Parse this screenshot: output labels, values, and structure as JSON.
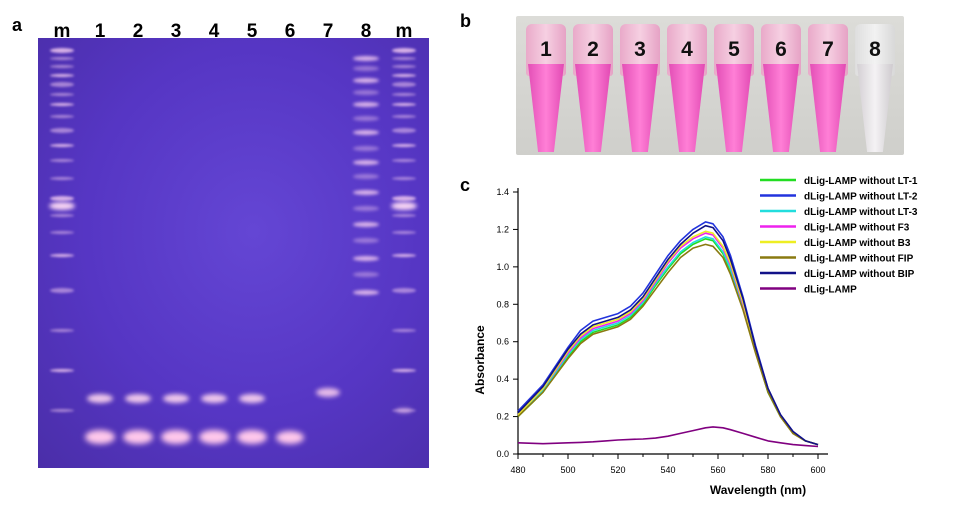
{
  "panel_labels": {
    "a": "a",
    "b": "b",
    "c": "c"
  },
  "gel": {
    "lane_labels": [
      "m",
      "1",
      "2",
      "3",
      "4",
      "5",
      "6",
      "7",
      "8",
      "m"
    ]
  },
  "tubes": {
    "labels": [
      "1",
      "2",
      "3",
      "4",
      "5",
      "6",
      "7",
      "8"
    ],
    "colors": [
      "pink",
      "pink",
      "pink",
      "pink",
      "pink",
      "pink",
      "pink",
      "colorless"
    ]
  },
  "chart_data": {
    "type": "line",
    "title": "",
    "xlabel": "Wavelength (nm)",
    "ylabel": "Absorbance",
    "xlim": [
      480,
      600
    ],
    "ylim": [
      0.0,
      1.4
    ],
    "x_ticks": [
      "480",
      "500",
      "520",
      "540",
      "560",
      "580",
      "600"
    ],
    "y_ticks": [
      "0.0",
      "0.2",
      "0.4",
      "0.6",
      "0.8",
      "1.0",
      "1.2",
      "1.4"
    ],
    "legend_position": "top-right",
    "x": [
      480,
      490,
      500,
      505,
      510,
      515,
      520,
      525,
      530,
      535,
      540,
      545,
      550,
      555,
      558,
      562,
      565,
      570,
      575,
      580,
      585,
      590,
      595,
      600
    ],
    "series": [
      {
        "name": "dLig-LAMP without LT-1",
        "color": "#22dd22",
        "values": [
          0.2,
          0.33,
          0.52,
          0.6,
          0.65,
          0.67,
          0.69,
          0.73,
          0.8,
          0.9,
          0.99,
          1.07,
          1.12,
          1.15,
          1.14,
          1.07,
          0.98,
          0.78,
          0.55,
          0.33,
          0.2,
          0.11,
          0.07,
          0.05
        ]
      },
      {
        "name": "dLig-LAMP without LT-2",
        "color": "#2233dd",
        "values": [
          0.23,
          0.37,
          0.57,
          0.66,
          0.71,
          0.73,
          0.75,
          0.79,
          0.86,
          0.96,
          1.06,
          1.14,
          1.2,
          1.24,
          1.23,
          1.16,
          1.06,
          0.84,
          0.58,
          0.35,
          0.21,
          0.12,
          0.07,
          0.05
        ]
      },
      {
        "name": "dLig-LAMP without LT-3",
        "color": "#22dddd",
        "values": [
          0.21,
          0.34,
          0.53,
          0.61,
          0.66,
          0.68,
          0.7,
          0.74,
          0.81,
          0.91,
          1.0,
          1.08,
          1.13,
          1.16,
          1.15,
          1.08,
          0.99,
          0.79,
          0.55,
          0.33,
          0.2,
          0.11,
          0.07,
          0.05
        ]
      },
      {
        "name": "dLig-LAMP without F3",
        "color": "#ee22ee",
        "values": [
          0.21,
          0.35,
          0.54,
          0.62,
          0.67,
          0.69,
          0.71,
          0.75,
          0.82,
          0.92,
          1.02,
          1.1,
          1.15,
          1.18,
          1.17,
          1.1,
          1.01,
          0.8,
          0.56,
          0.34,
          0.2,
          0.11,
          0.07,
          0.05
        ]
      },
      {
        "name": "dLig-LAMP without B3",
        "color": "#eeee22",
        "values": [
          0.21,
          0.35,
          0.55,
          0.63,
          0.68,
          0.7,
          0.72,
          0.76,
          0.83,
          0.93,
          1.03,
          1.11,
          1.16,
          1.19,
          1.18,
          1.11,
          1.02,
          0.81,
          0.56,
          0.34,
          0.2,
          0.11,
          0.07,
          0.05
        ]
      },
      {
        "name": "dLig-LAMP without FIP",
        "color": "#8a7a10",
        "values": [
          0.2,
          0.33,
          0.51,
          0.59,
          0.64,
          0.66,
          0.68,
          0.72,
          0.79,
          0.88,
          0.97,
          1.05,
          1.1,
          1.12,
          1.11,
          1.05,
          0.96,
          0.77,
          0.54,
          0.33,
          0.2,
          0.11,
          0.07,
          0.05
        ]
      },
      {
        "name": "dLig-LAMP without BIP",
        "color": "#111188",
        "values": [
          0.22,
          0.36,
          0.56,
          0.64,
          0.69,
          0.71,
          0.73,
          0.77,
          0.84,
          0.94,
          1.04,
          1.12,
          1.18,
          1.22,
          1.21,
          1.14,
          1.04,
          0.83,
          0.57,
          0.35,
          0.21,
          0.12,
          0.07,
          0.05
        ]
      },
      {
        "name": "dLig-LAMP",
        "color": "#800080",
        "values": [
          0.06,
          0.055,
          0.06,
          0.062,
          0.065,
          0.07,
          0.075,
          0.078,
          0.08,
          0.085,
          0.095,
          0.11,
          0.125,
          0.14,
          0.145,
          0.14,
          0.13,
          0.11,
          0.09,
          0.07,
          0.06,
          0.05,
          0.045,
          0.04
        ]
      }
    ]
  }
}
